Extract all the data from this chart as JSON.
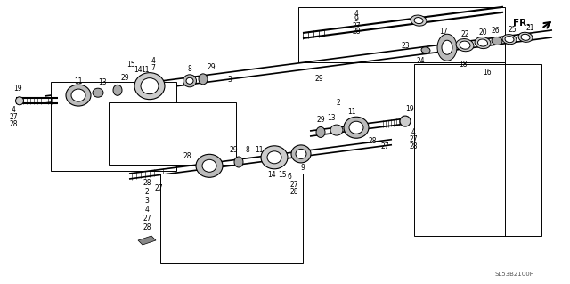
{
  "bg_color": "#ffffff",
  "line_color": "#000000",
  "figsize": [
    6.4,
    3.19
  ],
  "dpi": 100,
  "watermark": "SL53B2100F",
  "fr_label": "FR."
}
